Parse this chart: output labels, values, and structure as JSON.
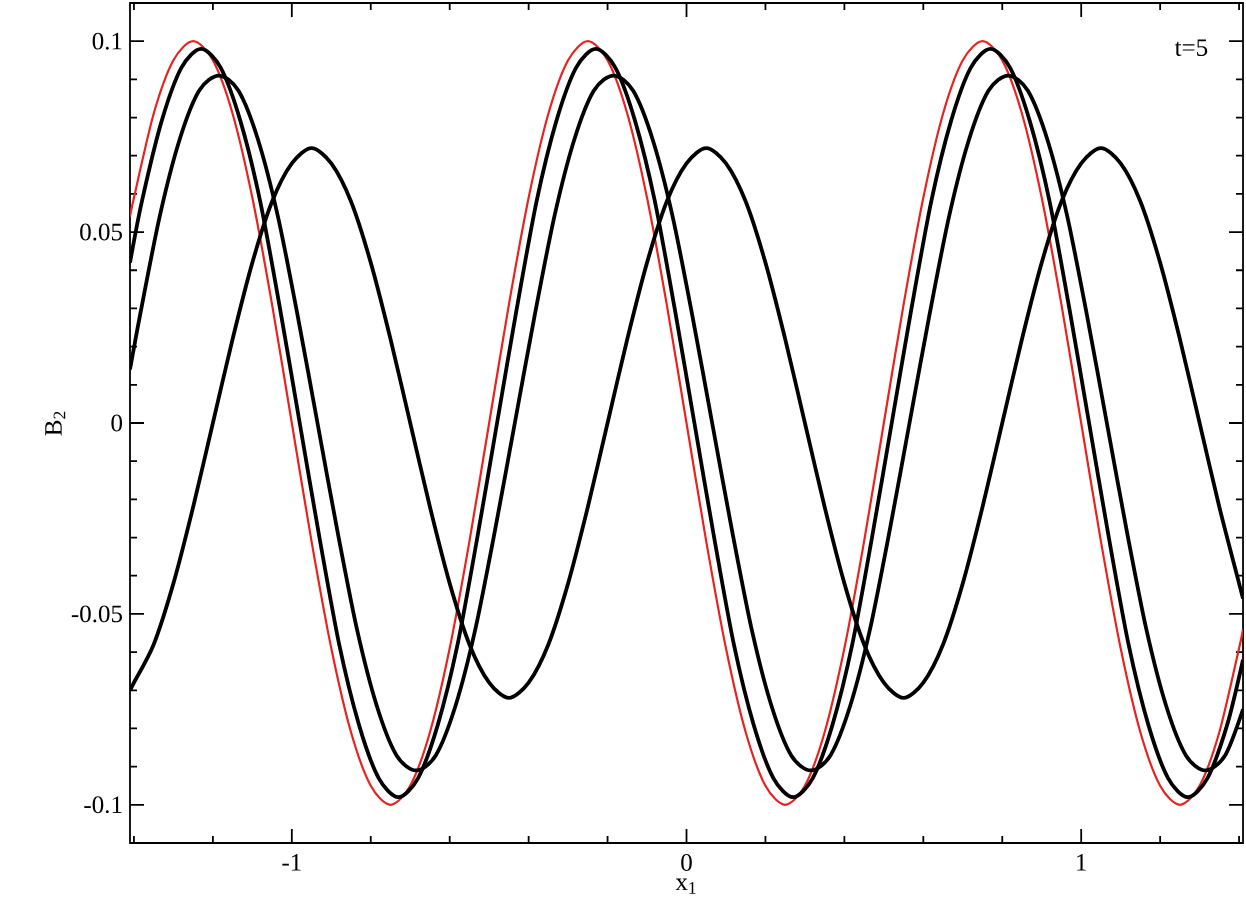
{
  "chart_data": {
    "type": "line",
    "xlabel": "x$_{1}$",
    "ylabel": "B$_{2}$",
    "annotations": [
      "t=5"
    ],
    "marker": "none",
    "line_style": "solid",
    "xlim": [
      -1.41,
      1.41
    ],
    "ylim": [
      -0.11,
      0.11
    ],
    "xticks": [
      {
        "value": -1.4,
        "label": null
      },
      {
        "value": -1.2,
        "label": null
      },
      -1,
      {
        "value": -0.8,
        "label": null
      },
      {
        "value": -0.6,
        "label": null
      },
      {
        "value": -0.4,
        "label": null
      },
      {
        "value": -0.2,
        "label": null
      },
      0,
      {
        "value": 0.2,
        "label": null
      },
      {
        "value": 0.4,
        "label": null
      },
      {
        "value": 0.6,
        "label": null
      },
      {
        "value": 0.8,
        "label": null
      },
      1,
      {
        "value": 1.2,
        "label": null
      },
      {
        "value": 1.4,
        "label": null
      }
    ],
    "yticks": [
      -0.1,
      {
        "value": -0.09,
        "label": null
      },
      {
        "value": -0.08,
        "label": null
      },
      {
        "value": -0.07,
        "label": null
      },
      {
        "value": -0.06,
        "label": null
      },
      -0.05,
      {
        "value": -0.04,
        "label": null
      },
      {
        "value": -0.03,
        "label": null
      },
      {
        "value": -0.02,
        "label": null
      },
      {
        "value": -0.01,
        "label": null
      },
      0,
      {
        "value": 0.01,
        "label": null
      },
      {
        "value": 0.02,
        "label": null
      },
      {
        "value": 0.03,
        "label": null
      },
      {
        "value": 0.04,
        "label": null
      },
      0.05,
      {
        "value": 0.06,
        "label": null
      },
      {
        "value": 0.07,
        "label": null
      },
      {
        "value": 0.08,
        "label": null
      },
      {
        "value": 0.09,
        "label": null
      },
      0.1
    ],
    "series": [
      {
        "color": "#e8231f",
        "x": [
          -1.41,
          -1.4,
          -1.35,
          -1.3,
          -1.25,
          -1.2,
          -1.15,
          -1.1,
          -1.05,
          -1,
          -0.95,
          -0.9,
          -0.85,
          -0.8,
          -0.75,
          -0.7,
          -0.65,
          -0.6,
          -0.55,
          -0.5,
          -0.45,
          -0.4,
          -0.35,
          -0.3,
          -0.25,
          -0.2,
          -0.15,
          -0.1,
          -0.05,
          0,
          0.05,
          0.1,
          0.15,
          0.2,
          0.25,
          0.3,
          0.35,
          0.4,
          0.45,
          0.5,
          0.55,
          0.6,
          0.65,
          0.7,
          0.75,
          0.8,
          0.85,
          0.9,
          0.95,
          1,
          1.05,
          1.1,
          1.15,
          1.2,
          1.25,
          1.3,
          1.35,
          1.4,
          1.41
        ],
        "values": [
          0.054,
          0.059,
          0.081,
          0.095,
          0.1,
          0.095,
          0.081,
          0.059,
          0.031,
          0,
          -0.031,
          -0.059,
          -0.081,
          -0.095,
          -0.1,
          -0.095,
          -0.081,
          -0.059,
          -0.031,
          0,
          0.031,
          0.059,
          0.081,
          0.095,
          0.1,
          0.095,
          0.081,
          0.059,
          0.031,
          0,
          -0.031,
          -0.059,
          -0.081,
          -0.095,
          -0.1,
          -0.095,
          -0.081,
          -0.059,
          -0.031,
          0,
          0.031,
          0.059,
          0.081,
          0.095,
          0.1,
          0.095,
          0.081,
          0.059,
          0.031,
          0,
          -0.031,
          -0.059,
          -0.081,
          -0.095,
          -0.1,
          -0.095,
          -0.081,
          -0.059,
          -0.054
        ]
      },
      {
        "color": "#000000",
        "x": [
          -1.41,
          -1.38,
          -1.33,
          -1.28,
          -1.23,
          -1.18,
          -1.13,
          -1.08,
          -1.03,
          -0.98,
          -0.93,
          -0.88,
          -0.83,
          -0.78,
          -0.73,
          -0.68,
          -0.63,
          -0.58,
          -0.53,
          -0.48,
          -0.43,
          -0.38,
          -0.33,
          -0.28,
          -0.23,
          -0.18,
          -0.13,
          -0.08,
          -0.03,
          0.02,
          0.07,
          0.12,
          0.17,
          0.22,
          0.27,
          0.32,
          0.37,
          0.42,
          0.47,
          0.52,
          0.57,
          0.62,
          0.67,
          0.72,
          0.77,
          0.82,
          0.87,
          0.92,
          0.97,
          1.02,
          1.07,
          1.12,
          1.17,
          1.22,
          1.27,
          1.32,
          1.37,
          1.41
        ],
        "values": [
          0.042,
          0.058,
          0.079,
          0.093,
          0.098,
          0.093,
          0.079,
          0.058,
          0.03,
          0,
          -0.03,
          -0.058,
          -0.079,
          -0.093,
          -0.098,
          -0.093,
          -0.079,
          -0.058,
          -0.03,
          0,
          0.03,
          0.058,
          0.079,
          0.093,
          0.098,
          0.093,
          0.079,
          0.058,
          0.03,
          0,
          -0.03,
          -0.058,
          -0.079,
          -0.093,
          -0.098,
          -0.093,
          -0.079,
          -0.058,
          -0.03,
          0,
          0.03,
          0.058,
          0.079,
          0.093,
          0.098,
          0.093,
          0.079,
          0.058,
          0.03,
          0,
          -0.03,
          -0.058,
          -0.079,
          -0.093,
          -0.098,
          -0.093,
          -0.079,
          -0.062
        ]
      },
      {
        "color": "#000000",
        "x": [
          -1.41,
          -1.385,
          -1.335,
          -1.285,
          -1.235,
          -1.185,
          -1.135,
          -1.085,
          -1.035,
          -0.985,
          -0.935,
          -0.885,
          -0.835,
          -0.785,
          -0.735,
          -0.685,
          -0.635,
          -0.585,
          -0.535,
          -0.485,
          -0.435,
          -0.385,
          -0.335,
          -0.285,
          -0.235,
          -0.185,
          -0.135,
          -0.085,
          -0.035,
          0.015,
          0.065,
          0.115,
          0.165,
          0.215,
          0.265,
          0.315,
          0.365,
          0.415,
          0.465,
          0.515,
          0.565,
          0.615,
          0.665,
          0.715,
          0.765,
          0.815,
          0.865,
          0.915,
          0.965,
          1.015,
          1.065,
          1.115,
          1.165,
          1.215,
          1.265,
          1.315,
          1.365,
          1.41
        ],
        "values": [
          0.014,
          0.028,
          0.054,
          0.074,
          0.087,
          0.091,
          0.087,
          0.074,
          0.054,
          0.028,
          0,
          -0.028,
          -0.054,
          -0.074,
          -0.087,
          -0.091,
          -0.087,
          -0.074,
          -0.054,
          -0.028,
          0,
          0.028,
          0.054,
          0.074,
          0.087,
          0.091,
          0.087,
          0.074,
          0.054,
          0.028,
          0,
          -0.028,
          -0.054,
          -0.074,
          -0.087,
          -0.091,
          -0.087,
          -0.074,
          -0.054,
          -0.028,
          0,
          0.028,
          0.054,
          0.074,
          0.087,
          0.091,
          0.087,
          0.074,
          0.054,
          0.028,
          0,
          -0.028,
          -0.054,
          -0.074,
          -0.087,
          -0.091,
          -0.087,
          -0.075
        ]
      },
      {
        "color": "#000000",
        "x": [
          -1.41,
          -1.4,
          -1.35,
          -1.3,
          -1.25,
          -1.2,
          -1.15,
          -1.1,
          -1.05,
          -1,
          -0.95,
          -0.9,
          -0.85,
          -0.8,
          -0.75,
          -0.7,
          -0.65,
          -0.6,
          -0.55,
          -0.5,
          -0.45,
          -0.4,
          -0.35,
          -0.3,
          -0.25,
          -0.2,
          -0.15,
          -0.1,
          -0.05,
          0,
          0.05,
          0.1,
          0.15,
          0.2,
          0.25,
          0.3,
          0.35,
          0.4,
          0.45,
          0.5,
          0.55,
          0.6,
          0.65,
          0.7,
          0.75,
          0.8,
          0.85,
          0.9,
          0.95,
          1,
          1.05,
          1.1,
          1.15,
          1.2,
          1.25,
          1.3,
          1.35,
          1.4,
          1.41
        ],
        "values": [
          -0.07,
          -0.068,
          -0.058,
          -0.042,
          -0.022,
          0,
          0.022,
          0.042,
          0.058,
          0.068,
          0.072,
          0.068,
          0.058,
          0.042,
          0.022,
          0,
          -0.022,
          -0.042,
          -0.058,
          -0.068,
          -0.072,
          -0.068,
          -0.058,
          -0.042,
          -0.022,
          0,
          0.022,
          0.042,
          0.058,
          0.068,
          0.072,
          0.068,
          0.058,
          0.042,
          0.022,
          0,
          -0.022,
          -0.042,
          -0.058,
          -0.068,
          -0.072,
          -0.068,
          -0.058,
          -0.042,
          -0.022,
          0,
          0.022,
          0.042,
          0.058,
          0.068,
          0.072,
          0.068,
          0.058,
          0.042,
          0.022,
          0,
          -0.022,
          -0.042,
          -0.046
        ]
      }
    ]
  }
}
